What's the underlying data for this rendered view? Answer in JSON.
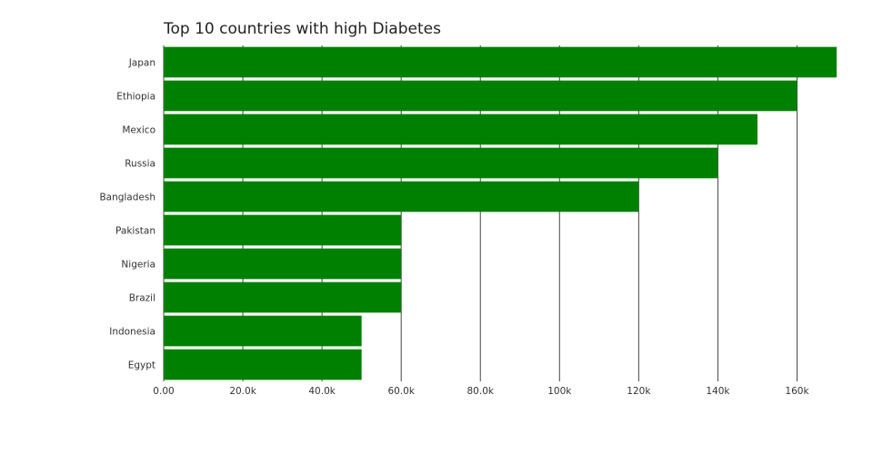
{
  "chart_data": {
    "type": "bar",
    "orientation": "horizontal",
    "title": "Top 10 countries with high Diabetes",
    "xlabel": "",
    "ylabel": "",
    "categories": [
      "Japan",
      "Ethiopia",
      "Mexico",
      "Russia",
      "Bangladesh",
      "Pakistan",
      "Nigeria",
      "Brazil",
      "Indonesia",
      "Egypt"
    ],
    "values": [
      170000,
      160000,
      150000,
      140000,
      120000,
      60000,
      60000,
      60000,
      50000,
      50000
    ],
    "xlim": [
      0,
      170000
    ],
    "x_ticks": [
      0,
      20000,
      40000,
      60000,
      80000,
      100000,
      120000,
      140000,
      160000
    ],
    "x_tick_labels": [
      "0.00",
      "20.0k",
      "40.0k",
      "60.0k",
      "80.0k",
      "100k",
      "120k",
      "140k",
      "160k"
    ],
    "grid": true,
    "bar_color": "#008000",
    "grid_color": "#444444"
  }
}
